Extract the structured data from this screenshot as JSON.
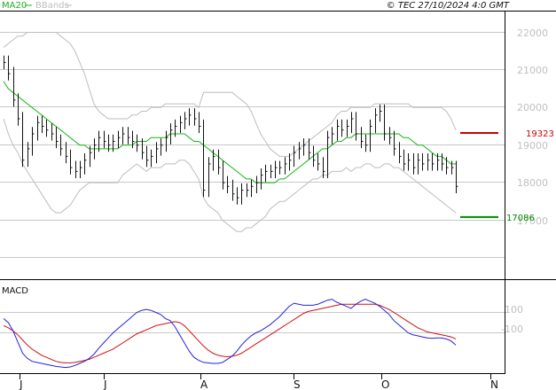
{
  "header": {
    "legend_ma20": "MA20",
    "legend_bbands": "BBands",
    "timestamp": "© TEC 27/10/2024 4:0 GMT"
  },
  "colors": {
    "price_bars": "#111111",
    "ma20": "#18b418",
    "bbands": "#bdbdbd",
    "resistance": "#cc0000",
    "support": "#008800",
    "macd": "#2222dd",
    "signal": "#d01010",
    "grid": "#c8c8c8"
  },
  "chart_data": [
    {
      "type": "ohlc",
      "legend": [
        "MA20",
        "BBands"
      ],
      "y_ticks": [
        "22000",
        "21000",
        "20000",
        "19000",
        "18000",
        "17000"
      ],
      "y_tick_values": [
        22000,
        21000,
        20000,
        19000,
        18000,
        17000
      ],
      "x_labels": [
        "J",
        "J",
        "A",
        "S",
        "O",
        "N"
      ],
      "ylim": [
        16300,
        22400
      ],
      "grid": true,
      "levels": [
        {
          "name": "resistance",
          "value": 19323,
          "label": "19323"
        },
        {
          "name": "support",
          "value": 17086,
          "label": "17086"
        }
      ],
      "close": [
        21200,
        20900,
        20200,
        19700,
        18600,
        18900,
        19300,
        19600,
        19500,
        19400,
        19300,
        19100,
        18900,
        18700,
        18400,
        18300,
        18400,
        18600,
        18800,
        19000,
        19200,
        19100,
        19000,
        19100,
        19200,
        19300,
        19200,
        19100,
        19000,
        18800,
        18600,
        18700,
        18900,
        19000,
        19200,
        19400,
        19500,
        19600,
        19700,
        19800,
        19700,
        19500,
        17800,
        18500,
        18700,
        18400,
        18000,
        17900,
        17700,
        17600,
        17800,
        17800,
        17900,
        18000,
        18200,
        18300,
        18300,
        18400,
        18400,
        18500,
        18600,
        18800,
        18900,
        19000,
        18800,
        18600,
        18500,
        18300,
        19200,
        19300,
        19500,
        19400,
        19500,
        19700,
        19300,
        19100,
        19000,
        19500,
        19800,
        19900,
        19300,
        19200,
        18900,
        18700,
        18500,
        18600,
        18400,
        18600,
        18500,
        18600,
        18500,
        18600,
        18500,
        18400,
        18400,
        17900
      ],
      "ma20": [
        20700,
        20500,
        20400,
        20300,
        20200,
        20100,
        20000,
        19900,
        19800,
        19700,
        19600,
        19500,
        19400,
        19300,
        19200,
        19100,
        19000,
        19000,
        18900,
        18900,
        18900,
        18900,
        18900,
        18900,
        18900,
        19000,
        19000,
        19000,
        19100,
        19100,
        19100,
        19200,
        19200,
        19200,
        19200,
        19300,
        19300,
        19300,
        19300,
        19200,
        19100,
        19100,
        19000,
        18900,
        18800,
        18700,
        18600,
        18500,
        18400,
        18300,
        18200,
        18100,
        18100,
        18000,
        18000,
        18000,
        18000,
        18000,
        18100,
        18100,
        18200,
        18300,
        18400,
        18500,
        18600,
        18700,
        18800,
        18900,
        18900,
        19000,
        19100,
        19100,
        19200,
        19200,
        19300,
        19300,
        19300,
        19300,
        19300,
        19300,
        19300,
        19300,
        19300,
        19300,
        19200,
        19200,
        19100,
        19000,
        19000,
        18900,
        18800,
        18700,
        18700,
        18600,
        18500,
        18500
      ],
      "bb_upper": [
        21600,
        21700,
        21800,
        21900,
        21900,
        22000,
        22000,
        22000,
        22000,
        22000,
        22000,
        22000,
        21900,
        21800,
        21700,
        21500,
        21200,
        20900,
        20500,
        20100,
        19900,
        19800,
        19700,
        19700,
        19700,
        19700,
        19700,
        19800,
        19800,
        19900,
        19900,
        20000,
        20000,
        20000,
        20100,
        20100,
        20100,
        20100,
        20100,
        20100,
        20100,
        20000,
        20400,
        20400,
        20400,
        20400,
        20400,
        20400,
        20400,
        20300,
        20200,
        20100,
        19900,
        19600,
        19300,
        19100,
        18900,
        18800,
        18700,
        18700,
        18700,
        18800,
        18900,
        19000,
        19100,
        19200,
        19300,
        19400,
        19500,
        19600,
        19800,
        19900,
        19900,
        20000,
        20000,
        20000,
        20000,
        20000,
        20100,
        20100,
        20100,
        20100,
        20100,
        20100,
        20100,
        20100,
        20000,
        20000,
        20000,
        20000,
        20000,
        20000,
        20000,
        19900,
        19700,
        19400
      ],
      "bb_lower": [
        19700,
        19300,
        19000,
        18800,
        18500,
        18300,
        18100,
        17900,
        17700,
        17500,
        17300,
        17200,
        17200,
        17300,
        17400,
        17600,
        17800,
        17900,
        18000,
        18000,
        18000,
        18000,
        18000,
        18000,
        18000,
        18200,
        18300,
        18400,
        18500,
        18400,
        18300,
        18400,
        18400,
        18400,
        18500,
        18500,
        18500,
        18600,
        18600,
        18500,
        18300,
        18100,
        17600,
        17400,
        17300,
        17200,
        17000,
        16900,
        16800,
        16700,
        16700,
        16800,
        16800,
        16900,
        17000,
        17100,
        17300,
        17400,
        17500,
        17500,
        17600,
        17700,
        17800,
        17900,
        18000,
        18100,
        18100,
        18200,
        18200,
        18300,
        18300,
        18300,
        18400,
        18300,
        18400,
        18400,
        18500,
        18500,
        18400,
        18400,
        18500,
        18500,
        18400,
        18400,
        18300,
        18200,
        18100,
        18000,
        17900,
        17800,
        17700,
        17600,
        17500,
        17400,
        17300,
        17200
      ]
    },
    {
      "type": "line",
      "title": "MACD",
      "y_ticks": [
        "100",
        "-100"
      ],
      "y_tick_values": [
        100,
        -100
      ],
      "ylim": [
        -470,
        270
      ],
      "series": [
        {
          "name": "MACD",
          "values": [
            40,
            0,
            -80,
            -190,
            -300,
            -350,
            -380,
            -390,
            -400,
            -410,
            -420,
            -430,
            -435,
            -440,
            -435,
            -420,
            -400,
            -380,
            -350,
            -310,
            -250,
            -200,
            -150,
            -100,
            -60,
            -20,
            20,
            60,
            100,
            120,
            130,
            120,
            100,
            80,
            40,
            20,
            -40,
            -120,
            -200,
            -280,
            -340,
            -370,
            -390,
            -395,
            -400,
            -400,
            -390,
            -360,
            -330,
            -280,
            -220,
            -170,
            -130,
            -100,
            -80,
            -50,
            -20,
            20,
            60,
            110,
            160,
            190,
            180,
            170,
            170,
            170,
            180,
            200,
            220,
            230,
            200,
            180,
            160,
            140,
            180,
            210,
            230,
            210,
            190,
            160,
            120,
            80,
            20,
            -20,
            -60,
            -100,
            -120,
            -130,
            -140,
            -150,
            -155,
            -150,
            -150,
            -160,
            -180,
            -220
          ]
        },
        {
          "name": "Signal",
          "values": [
            -30,
            -50,
            -80,
            -120,
            -170,
            -220,
            -260,
            -290,
            -320,
            -340,
            -360,
            -380,
            -390,
            -395,
            -395,
            -390,
            -380,
            -370,
            -360,
            -340,
            -320,
            -300,
            -280,
            -260,
            -230,
            -200,
            -170,
            -140,
            -110,
            -90,
            -70,
            -50,
            -30,
            -20,
            -10,
            0,
            10,
            0,
            -30,
            -80,
            -130,
            -180,
            -230,
            -270,
            -300,
            -320,
            -330,
            -335,
            -330,
            -320,
            -300,
            -270,
            -240,
            -210,
            -180,
            -150,
            -120,
            -90,
            -60,
            -30,
            0,
            30,
            60,
            90,
            110,
            120,
            130,
            140,
            150,
            160,
            170,
            180,
            180,
            180,
            180,
            180,
            180,
            180,
            180,
            170,
            150,
            130,
            100,
            70,
            40,
            10,
            -20,
            -50,
            -70,
            -90,
            -100,
            -110,
            -120,
            -130,
            -140,
            -160
          ]
        }
      ]
    }
  ]
}
